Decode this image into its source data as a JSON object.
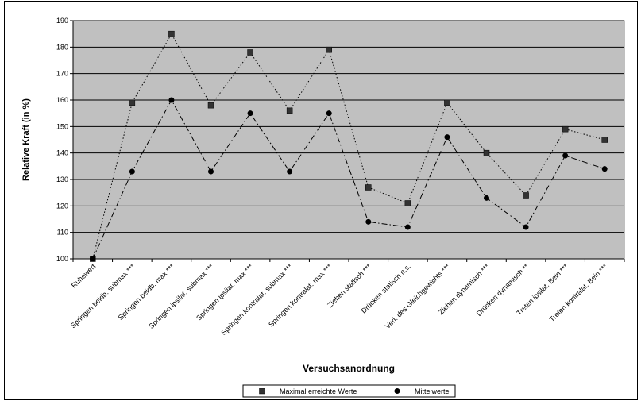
{
  "chart_data": {
    "type": "line",
    "xlabel": "Versuchsanordnung",
    "ylabel": "Relative Kraft (in %)",
    "ylim": [
      100,
      190
    ],
    "yticks": [
      100,
      110,
      120,
      130,
      140,
      150,
      160,
      170,
      180,
      190
    ],
    "grid": true,
    "legend_position": "bottom",
    "plot_background": "#c0c0c0",
    "categories": [
      "Ruhewert",
      "Springen beidb. submax ***",
      "Springen beidb. max ***",
      "Springen ipsilat. submax ***",
      "Springen ipsilat. max ***",
      "Springen kontralat. submax ***",
      "Springen kontralat. max ***",
      "Ziehen statisch ***",
      "Drücken statisch n.s.",
      "Verl. des Gleichgewichts ***",
      "Ziehen dynamisch ***",
      "Drücken dynamisch **",
      "Treten ipsilat. Bein ***",
      "Treten kontralat. Bein ***"
    ],
    "series": [
      {
        "name": "Maximal erreichte Werte",
        "marker": "square",
        "line_style": "dotted",
        "color": "#000000",
        "values": [
          100,
          159,
          185,
          158,
          178,
          156,
          179,
          127,
          121,
          159,
          140,
          124,
          149,
          145
        ]
      },
      {
        "name": "Mittelwerte",
        "marker": "circle",
        "line_style": "dash-dot",
        "color": "#000000",
        "values": [
          100,
          133,
          160,
          133,
          155,
          133,
          155,
          114,
          112,
          146,
          123,
          112,
          139,
          134
        ]
      }
    ]
  }
}
